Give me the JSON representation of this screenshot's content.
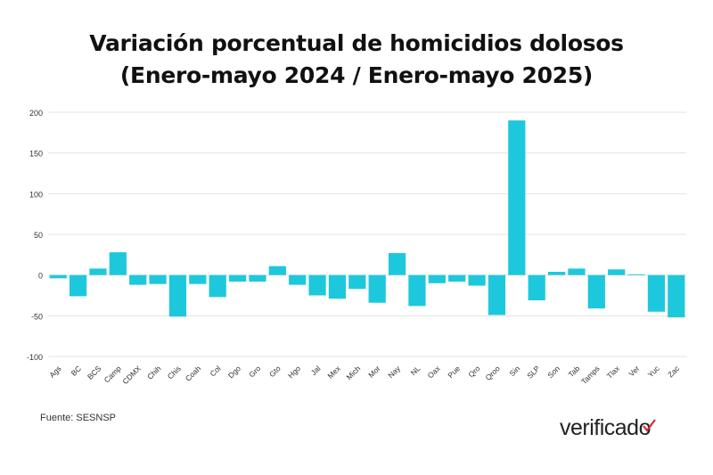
{
  "chart_data": {
    "type": "bar",
    "title": "Variación porcentual de homicidios dolosos",
    "subtitle": "(Enero-mayo 2024 / Enero-mayo 2025)",
    "xlabel": "",
    "ylabel": "",
    "ylim": [
      -100,
      200
    ],
    "yticks": [
      -100,
      -50,
      0,
      50,
      100,
      150,
      200
    ],
    "grid": true,
    "bar_color": "#1ec8dc",
    "categories": [
      "Ags",
      "BC",
      "BCS",
      "Camp",
      "CDMX",
      "Chih",
      "Chis",
      "Coah",
      "Col",
      "Dgo",
      "Gro",
      "Gto",
      "Hgo",
      "Jal",
      "Mex",
      "Mich",
      "Mor",
      "Nay",
      "NL",
      "Oax",
      "Pue",
      "Qro",
      "Qroo",
      "Sin",
      "SLP",
      "Son",
      "Tab",
      "Tamps",
      "Tlax",
      "Ver",
      "Yuc",
      "Zac"
    ],
    "values": [
      -4,
      -26,
      8,
      28,
      -12,
      -11,
      -51,
      -11,
      -27,
      -8,
      -8,
      11,
      -12,
      -25,
      -29,
      -17,
      -34,
      27,
      -38,
      -10,
      -8,
      -13,
      -49,
      190,
      -31,
      4,
      8,
      -41,
      7,
      1,
      -45,
      -52
    ]
  },
  "footer": {
    "source": "Fuente: SESNSP",
    "logo_text": "verificado"
  }
}
